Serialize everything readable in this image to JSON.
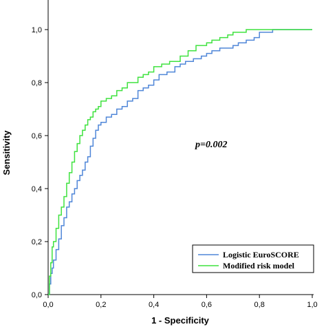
{
  "chart_data": {
    "type": "line",
    "title": "",
    "xlabel": "1 - Specificity",
    "ylabel": "Sensitivity",
    "xlim": [
      0,
      1
    ],
    "ylim": [
      0,
      1
    ],
    "xticks": [
      "0,0",
      "0,2",
      "0,4",
      "0,6",
      "0,8",
      "1,0"
    ],
    "yticks": [
      "0,0",
      "0,2",
      "0,4",
      "0,6",
      "0,8",
      "1,0"
    ],
    "annotation": "p=0.002",
    "grid": false,
    "legend_position": "bottom-right",
    "series": [
      {
        "name": "Logistic EuroSCORE",
        "color": "#4f86d8",
        "x": [
          0,
          0.005,
          0.01,
          0.015,
          0.02,
          0.03,
          0.04,
          0.05,
          0.06,
          0.07,
          0.08,
          0.09,
          0.1,
          0.11,
          0.12,
          0.13,
          0.14,
          0.15,
          0.16,
          0.17,
          0.18,
          0.19,
          0.2,
          0.22,
          0.24,
          0.26,
          0.28,
          0.3,
          0.32,
          0.34,
          0.36,
          0.38,
          0.4,
          0.42,
          0.45,
          0.48,
          0.5,
          0.52,
          0.55,
          0.58,
          0.6,
          0.62,
          0.65,
          0.68,
          0.7,
          0.72,
          0.75,
          0.78,
          0.8,
          0.85,
          0.88,
          1.0
        ],
        "y": [
          0,
          0.04,
          0.08,
          0.1,
          0.13,
          0.17,
          0.21,
          0.26,
          0.29,
          0.33,
          0.35,
          0.38,
          0.4,
          0.43,
          0.45,
          0.47,
          0.5,
          0.52,
          0.56,
          0.59,
          0.62,
          0.64,
          0.65,
          0.67,
          0.68,
          0.7,
          0.71,
          0.73,
          0.74,
          0.77,
          0.78,
          0.79,
          0.81,
          0.83,
          0.84,
          0.86,
          0.87,
          0.88,
          0.89,
          0.9,
          0.91,
          0.92,
          0.93,
          0.93,
          0.94,
          0.95,
          0.96,
          0.97,
          0.99,
          1.0,
          1.0,
          1.0
        ]
      },
      {
        "name": "Modified risk model",
        "color": "#3ee23e",
        "x": [
          0,
          0.005,
          0.01,
          0.015,
          0.02,
          0.03,
          0.04,
          0.05,
          0.06,
          0.07,
          0.08,
          0.09,
          0.1,
          0.11,
          0.12,
          0.13,
          0.14,
          0.15,
          0.16,
          0.17,
          0.18,
          0.19,
          0.2,
          0.22,
          0.24,
          0.26,
          0.28,
          0.3,
          0.32,
          0.34,
          0.36,
          0.38,
          0.4,
          0.43,
          0.46,
          0.5,
          0.53,
          0.56,
          0.6,
          0.62,
          0.65,
          0.68,
          0.7,
          0.75,
          0.8,
          0.85,
          1.0
        ],
        "y": [
          0,
          0.07,
          0.12,
          0.18,
          0.2,
          0.25,
          0.3,
          0.33,
          0.37,
          0.42,
          0.46,
          0.5,
          0.54,
          0.57,
          0.6,
          0.62,
          0.64,
          0.66,
          0.67,
          0.69,
          0.7,
          0.71,
          0.73,
          0.74,
          0.75,
          0.77,
          0.78,
          0.8,
          0.8,
          0.82,
          0.83,
          0.84,
          0.86,
          0.87,
          0.88,
          0.9,
          0.92,
          0.94,
          0.95,
          0.96,
          0.97,
          0.98,
          0.99,
          1.0,
          1.0,
          1.0,
          1.0
        ]
      }
    ]
  }
}
